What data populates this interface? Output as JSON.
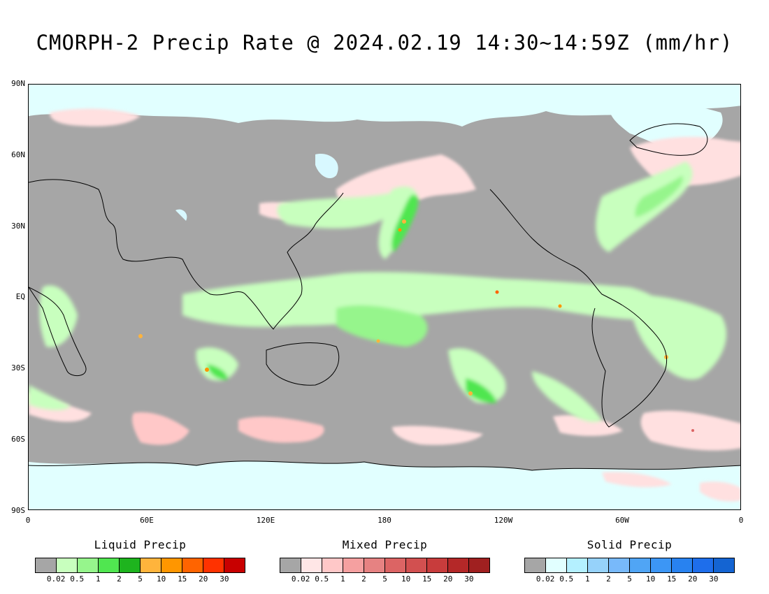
{
  "title": "CMORPH-2 Precip Rate @ 2024.02.19 14:30~14:59Z (mm/hr)",
  "map": {
    "lat_labels": [
      "90N",
      "60N",
      "30N",
      "EQ",
      "30S",
      "60S",
      "90S"
    ],
    "lon_labels": [
      "0",
      "60E",
      "120E",
      "180",
      "120W",
      "60W",
      "0"
    ],
    "background_color": "#a6a6a6",
    "coast_color": "#000000"
  },
  "legends": [
    {
      "name": "Liquid Precip",
      "colors": [
        "#a6a6a6",
        "#c8ffbe",
        "#96f58c",
        "#50e650",
        "#1eb41e",
        "#ffb43c",
        "#ff9600",
        "#ff6400",
        "#ff3200",
        "#c80000"
      ],
      "ticks": [
        "0.02",
        "0.5",
        "1",
        "2",
        "5",
        "10",
        "15",
        "20",
        "30"
      ]
    },
    {
      "name": "Mixed Precip",
      "colors": [
        "#a6a6a6",
        "#ffe6e6",
        "#ffc8c8",
        "#f5a0a0",
        "#e68282",
        "#dc6464",
        "#d25050",
        "#c83c3c",
        "#b42828",
        "#a02020"
      ],
      "ticks": [
        "0.02",
        "0.5",
        "1",
        "2",
        "5",
        "10",
        "15",
        "20",
        "30"
      ]
    },
    {
      "name": "Solid Precip",
      "colors": [
        "#a6a6a6",
        "#e1ffff",
        "#b4f0ff",
        "#96d2fa",
        "#78b9fa",
        "#50a5f5",
        "#3c96f5",
        "#2882f0",
        "#1e6eeb",
        "#1464d2"
      ],
      "ticks": [
        "0.02",
        "0.5",
        "1",
        "2",
        "5",
        "10",
        "15",
        "20",
        "30"
      ]
    }
  ]
}
